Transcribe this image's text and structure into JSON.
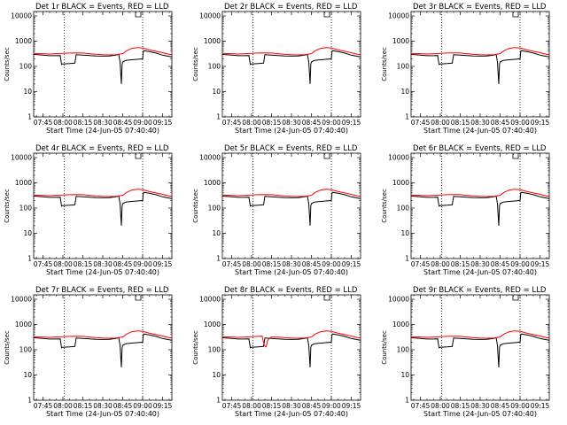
{
  "chart_data": {
    "type": "line",
    "x_tick_labels": [
      "07:45",
      "08:00",
      "08:15",
      "08:30",
      "08:45",
      "09:00",
      "09:15"
    ],
    "x_tick_minutes": [
      465,
      480,
      495,
      510,
      525,
      540,
      555
    ],
    "x_range_minutes": [
      458,
      562
    ],
    "y_tick_values": [
      1,
      10,
      100,
      1000,
      10000
    ],
    "y_tick_labels": [
      "1",
      "10",
      "100",
      "1000",
      "10000"
    ],
    "ylim": [
      1,
      15000
    ],
    "y_scale": "log",
    "ylabel": "Counts/sec",
    "xlabel": "Start Time (24-Jun-05 07:40:40)",
    "vertical_dotted_lines_minutes": [
      481,
      540
    ],
    "colors": {
      "events": "#000000",
      "lld": "#ff0000"
    },
    "panels": [
      {
        "title": "Det 1r BLACK = Events, RED = LLD",
        "variant": 0
      },
      {
        "title": "Det 2r BLACK = Events, RED = LLD",
        "variant": 0
      },
      {
        "title": "Det 3r BLACK = Events, RED = LLD",
        "variant": 0
      },
      {
        "title": "Det 4r BLACK = Events, RED = LLD",
        "variant": 0
      },
      {
        "title": "Det 5r BLACK = Events, RED = LLD",
        "variant": 0
      },
      {
        "title": "Det 6r BLACK = Events, RED = LLD",
        "variant": 0
      },
      {
        "title": "Det 7r BLACK = Events, RED = LLD",
        "variant": 0
      },
      {
        "title": "Det 8r BLACK = Events, RED = LLD",
        "variant": 1
      },
      {
        "title": "Det 9r BLACK = Events, RED = LLD",
        "variant": 0
      }
    ],
    "series": [
      {
        "name": "Events",
        "x": [
          458,
          465,
          470,
          475,
          478,
          479,
          480,
          485,
          489,
          490,
          495,
          500,
          505,
          510,
          515,
          520,
          522,
          523,
          524,
          524.5,
          525,
          527,
          530,
          535,
          540,
          540.5,
          541,
          545,
          550,
          555,
          560,
          562
        ],
        "y": [
          300,
          280,
          265,
          265,
          270,
          120,
          125,
          130,
          135,
          290,
          280,
          270,
          260,
          255,
          260,
          280,
          300,
          150,
          20,
          120,
          150,
          170,
          180,
          190,
          200,
          400,
          420,
          390,
          340,
          280,
          250,
          240
        ]
      },
      {
        "name": "LLD",
        "x": [
          458,
          465,
          470,
          475,
          480,
          485,
          490,
          495,
          500,
          505,
          510,
          515,
          520,
          525,
          528,
          532,
          536,
          540,
          544,
          548,
          552,
          556,
          560,
          562
        ],
        "y": [
          330,
          320,
          310,
          320,
          330,
          340,
          345,
          340,
          320,
          300,
          290,
          285,
          290,
          320,
          420,
          520,
          560,
          540,
          470,
          420,
          380,
          340,
          300,
          290
        ]
      },
      {
        "name": "LLD (Det 8r)",
        "x": [
          458,
          465,
          470,
          475,
          480,
          485,
          488,
          489,
          490,
          491,
          492,
          493,
          494,
          495,
          500,
          505,
          510,
          515,
          520,
          525,
          528,
          532,
          536,
          540,
          544,
          548,
          552,
          556,
          560,
          562
        ],
        "y": [
          330,
          320,
          310,
          320,
          330,
          340,
          345,
          190,
          140,
          130,
          230,
          270,
          300,
          320,
          320,
          300,
          290,
          285,
          290,
          320,
          420,
          520,
          560,
          540,
          470,
          420,
          380,
          340,
          300,
          290
        ]
      }
    ]
  }
}
